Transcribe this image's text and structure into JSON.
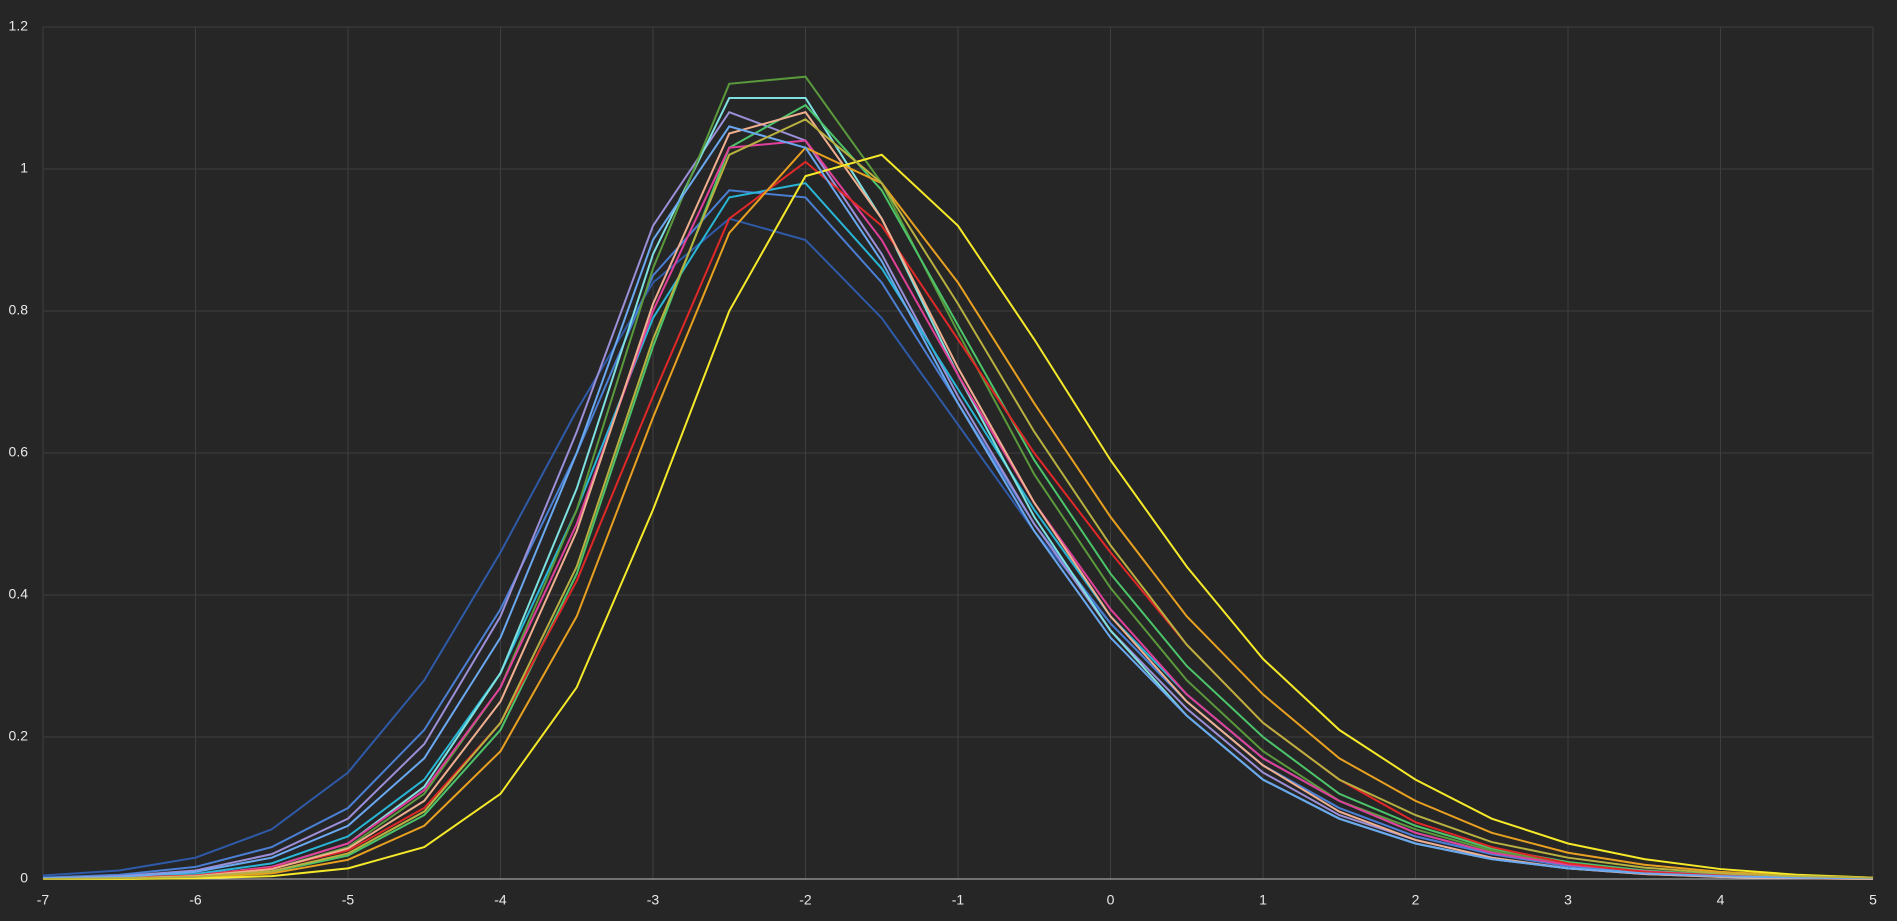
{
  "chart_data": {
    "type": "line",
    "x": [
      -7,
      -6.5,
      -6,
      -5.5,
      -5,
      -4.5,
      -4,
      -3.5,
      -3,
      -2.5,
      -2,
      -1.5,
      -1,
      -0.5,
      0,
      0.5,
      1,
      1.5,
      2,
      2.5,
      3,
      3.5,
      4,
      4.5,
      5
    ],
    "xlim": [
      -7,
      5
    ],
    "xticks": [
      -7,
      -6,
      -5,
      -4,
      -3,
      -2,
      -1,
      0,
      1,
      2,
      3,
      4,
      5
    ],
    "ylim": [
      0,
      1.2
    ],
    "yticks": [
      0,
      0.2,
      0.4,
      0.6,
      0.8,
      1,
      1.2
    ],
    "grid": true,
    "series": [
      {
        "color": "#2e5aa8",
        "values": [
          0.005,
          0.012,
          0.03,
          0.07,
          0.15,
          0.28,
          0.46,
          0.66,
          0.84,
          0.93,
          0.9,
          0.79,
          0.64,
          0.49,
          0.36,
          0.25,
          0.16,
          0.1,
          0.06,
          0.035,
          0.02,
          0.01,
          0.005,
          0.002,
          0.001
        ]
      },
      {
        "color": "#4a7fd4",
        "values": [
          0.002,
          0.006,
          0.017,
          0.045,
          0.1,
          0.21,
          0.38,
          0.6,
          0.85,
          0.97,
          0.96,
          0.84,
          0.67,
          0.5,
          0.36,
          0.25,
          0.16,
          0.1,
          0.06,
          0.035,
          0.018,
          0.009,
          0.004,
          0.002,
          0.001
        ]
      },
      {
        "color": "#9b8fd8",
        "values": [
          0.001,
          0.004,
          0.012,
          0.035,
          0.085,
          0.19,
          0.37,
          0.63,
          0.92,
          1.08,
          1.04,
          0.88,
          0.68,
          0.5,
          0.35,
          0.24,
          0.15,
          0.09,
          0.055,
          0.03,
          0.015,
          0.007,
          0.003,
          0.001,
          0
        ]
      },
      {
        "color": "#29b6d6",
        "values": [
          0,
          0.002,
          0.007,
          0.022,
          0.06,
          0.14,
          0.29,
          0.52,
          0.79,
          0.96,
          0.98,
          0.86,
          0.69,
          0.52,
          0.37,
          0.26,
          0.17,
          0.11,
          0.065,
          0.037,
          0.02,
          0.01,
          0.005,
          0.002,
          0.001
        ]
      },
      {
        "color": "#7fe0e0",
        "values": [
          0,
          0.001,
          0.005,
          0.017,
          0.05,
          0.13,
          0.29,
          0.55,
          0.88,
          1.1,
          1.1,
          0.93,
          0.71,
          0.51,
          0.35,
          0.23,
          0.14,
          0.085,
          0.05,
          0.028,
          0.015,
          0.008,
          0.004,
          0.002,
          0
        ]
      },
      {
        "color": "#5a9a3c",
        "values": [
          0,
          0.001,
          0.004,
          0.014,
          0.045,
          0.12,
          0.27,
          0.52,
          0.86,
          1.12,
          1.13,
          0.98,
          0.77,
          0.57,
          0.41,
          0.28,
          0.18,
          0.11,
          0.07,
          0.04,
          0.022,
          0.011,
          0.005,
          0.002,
          0.001
        ]
      },
      {
        "color": "#4cc46a",
        "values": [
          0,
          0.001,
          0.003,
          0.01,
          0.033,
          0.09,
          0.21,
          0.43,
          0.75,
          1.03,
          1.09,
          0.97,
          0.78,
          0.59,
          0.43,
          0.3,
          0.2,
          0.12,
          0.075,
          0.043,
          0.024,
          0.012,
          0.006,
          0.003,
          0.001
        ]
      },
      {
        "color": "#e0409a",
        "values": [
          0,
          0.001,
          0.005,
          0.017,
          0.05,
          0.125,
          0.27,
          0.5,
          0.8,
          1.03,
          1.04,
          0.9,
          0.71,
          0.53,
          0.38,
          0.26,
          0.17,
          0.11,
          0.065,
          0.037,
          0.02,
          0.011,
          0.005,
          0.002,
          0.001
        ]
      },
      {
        "color": "#e02828",
        "values": [
          0,
          0.002,
          0.005,
          0.015,
          0.04,
          0.1,
          0.22,
          0.42,
          0.68,
          0.93,
          1.01,
          0.92,
          0.76,
          0.6,
          0.46,
          0.33,
          0.22,
          0.14,
          0.08,
          0.045,
          0.022,
          0.01,
          0.005,
          0.002,
          0
        ]
      },
      {
        "color": "#f0b090",
        "values": [
          0,
          0.001,
          0.004,
          0.014,
          0.043,
          0.11,
          0.25,
          0.49,
          0.81,
          1.05,
          1.08,
          0.93,
          0.72,
          0.53,
          0.37,
          0.25,
          0.16,
          0.095,
          0.055,
          0.03,
          0.015,
          0.007,
          0.003,
          0.001,
          0
        ]
      },
      {
        "color": "#e8a020",
        "values": [
          0,
          0,
          0.002,
          0.008,
          0.027,
          0.075,
          0.18,
          0.37,
          0.65,
          0.91,
          1.03,
          0.98,
          0.84,
          0.67,
          0.51,
          0.37,
          0.26,
          0.17,
          0.11,
          0.065,
          0.037,
          0.02,
          0.01,
          0.005,
          0.002
        ]
      },
      {
        "color": "#f5e92a",
        "values": [
          0,
          0,
          0.001,
          0.004,
          0.015,
          0.045,
          0.12,
          0.27,
          0.52,
          0.8,
          0.99,
          1.02,
          0.92,
          0.76,
          0.59,
          0.44,
          0.31,
          0.21,
          0.14,
          0.085,
          0.05,
          0.028,
          0.014,
          0.006,
          0.002
        ]
      },
      {
        "color": "#6aa8f0",
        "values": [
          0.001,
          0.003,
          0.01,
          0.03,
          0.075,
          0.17,
          0.34,
          0.6,
          0.9,
          1.06,
          1.03,
          0.87,
          0.67,
          0.49,
          0.34,
          0.23,
          0.14,
          0.085,
          0.05,
          0.028,
          0.015,
          0.008,
          0.004,
          0.002,
          0.001
        ]
      },
      {
        "color": "#b8b040",
        "values": [
          0,
          0.001,
          0.003,
          0.011,
          0.036,
          0.095,
          0.22,
          0.44,
          0.76,
          1.02,
          1.07,
          0.98,
          0.81,
          0.63,
          0.47,
          0.33,
          0.22,
          0.14,
          0.09,
          0.052,
          0.03,
          0.016,
          0.008,
          0.004,
          0.002
        ]
      }
    ]
  }
}
